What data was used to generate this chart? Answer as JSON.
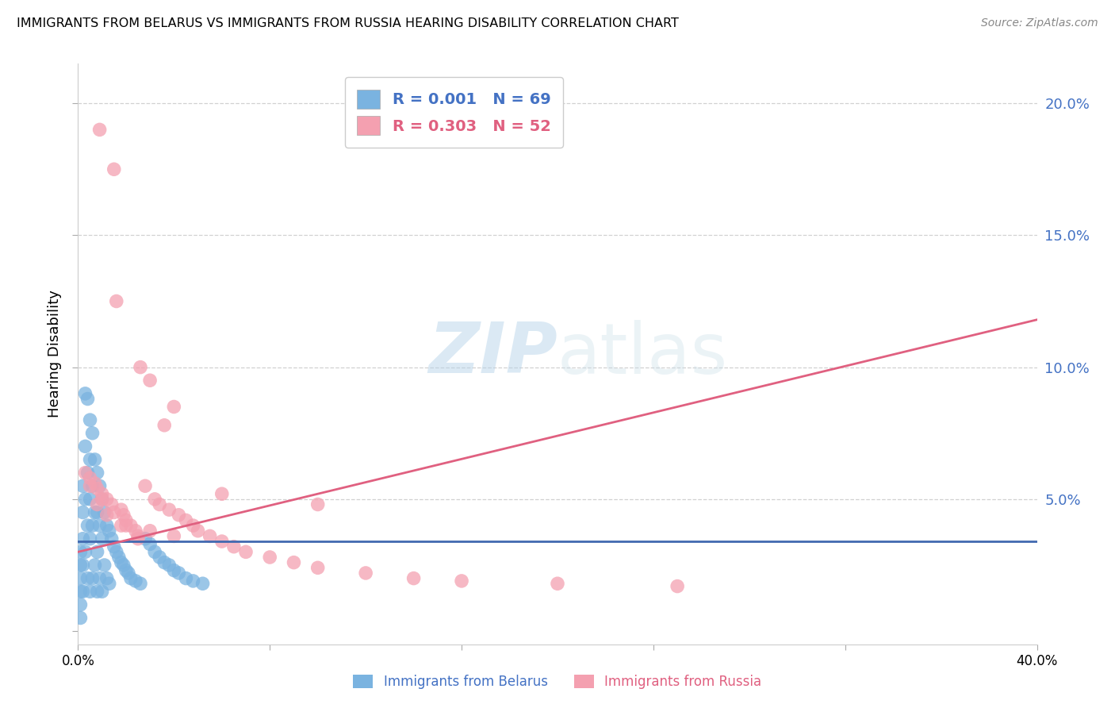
{
  "title": "IMMIGRANTS FROM BELARUS VS IMMIGRANTS FROM RUSSIA HEARING DISABILITY CORRELATION CHART",
  "source": "Source: ZipAtlas.com",
  "ylabel": "Hearing Disability",
  "xlim": [
    0.0,
    0.4
  ],
  "ylim": [
    -0.005,
    0.215
  ],
  "belarus_color": "#7ab3e0",
  "russia_color": "#f4a0b0",
  "belarus_trend_color": "#4169b0",
  "russia_trend_color": "#e06080",
  "grid_color": "#cccccc",
  "background_color": "#ffffff",
  "belarus_x": [
    0.001,
    0.001,
    0.001,
    0.001,
    0.001,
    0.002,
    0.002,
    0.002,
    0.002,
    0.002,
    0.003,
    0.003,
    0.003,
    0.003,
    0.004,
    0.004,
    0.004,
    0.004,
    0.005,
    0.005,
    0.005,
    0.005,
    0.005,
    0.006,
    0.006,
    0.006,
    0.006,
    0.007,
    0.007,
    0.007,
    0.008,
    0.008,
    0.008,
    0.008,
    0.009,
    0.009,
    0.009,
    0.01,
    0.01,
    0.01,
    0.011,
    0.011,
    0.012,
    0.012,
    0.013,
    0.013,
    0.014,
    0.015,
    0.016,
    0.017,
    0.018,
    0.019,
    0.02,
    0.021,
    0.022,
    0.024,
    0.026,
    0.028,
    0.03,
    0.032,
    0.034,
    0.036,
    0.038,
    0.04,
    0.042,
    0.045,
    0.048,
    0.052,
    0.001
  ],
  "belarus_y": [
    0.03,
    0.025,
    0.02,
    0.015,
    0.01,
    0.055,
    0.045,
    0.035,
    0.025,
    0.015,
    0.09,
    0.07,
    0.05,
    0.03,
    0.088,
    0.06,
    0.04,
    0.02,
    0.08,
    0.065,
    0.05,
    0.035,
    0.015,
    0.075,
    0.055,
    0.04,
    0.02,
    0.065,
    0.045,
    0.025,
    0.06,
    0.045,
    0.03,
    0.015,
    0.055,
    0.04,
    0.02,
    0.05,
    0.035,
    0.015,
    0.045,
    0.025,
    0.04,
    0.02,
    0.038,
    0.018,
    0.035,
    0.032,
    0.03,
    0.028,
    0.026,
    0.025,
    0.023,
    0.022,
    0.02,
    0.019,
    0.018,
    0.035,
    0.033,
    0.03,
    0.028,
    0.026,
    0.025,
    0.023,
    0.022,
    0.02,
    0.019,
    0.018,
    0.005
  ],
  "russia_x": [
    0.003,
    0.005,
    0.007,
    0.008,
    0.009,
    0.01,
    0.012,
    0.014,
    0.015,
    0.016,
    0.018,
    0.019,
    0.02,
    0.022,
    0.024,
    0.025,
    0.026,
    0.028,
    0.03,
    0.032,
    0.034,
    0.036,
    0.038,
    0.04,
    0.042,
    0.045,
    0.048,
    0.05,
    0.055,
    0.06,
    0.065,
    0.07,
    0.08,
    0.09,
    0.1,
    0.12,
    0.14,
    0.16,
    0.2,
    0.25,
    0.005,
    0.01,
    0.015,
    0.02,
    0.025,
    0.008,
    0.012,
    0.018,
    0.03,
    0.04,
    0.06,
    0.1
  ],
  "russia_y": [
    0.06,
    0.058,
    0.056,
    0.054,
    0.19,
    0.052,
    0.05,
    0.048,
    0.175,
    0.125,
    0.046,
    0.044,
    0.042,
    0.04,
    0.038,
    0.036,
    0.1,
    0.055,
    0.095,
    0.05,
    0.048,
    0.078,
    0.046,
    0.085,
    0.044,
    0.042,
    0.04,
    0.038,
    0.036,
    0.034,
    0.032,
    0.03,
    0.028,
    0.026,
    0.024,
    0.022,
    0.02,
    0.019,
    0.018,
    0.017,
    0.055,
    0.05,
    0.045,
    0.04,
    0.035,
    0.048,
    0.044,
    0.04,
    0.038,
    0.036,
    0.052,
    0.048
  ],
  "belarus_trend_x": [
    0.0,
    0.4
  ],
  "belarus_trend_y": [
    0.034,
    0.034
  ],
  "russia_trend_x": [
    0.0,
    0.4
  ],
  "russia_trend_y": [
    0.03,
    0.118
  ]
}
